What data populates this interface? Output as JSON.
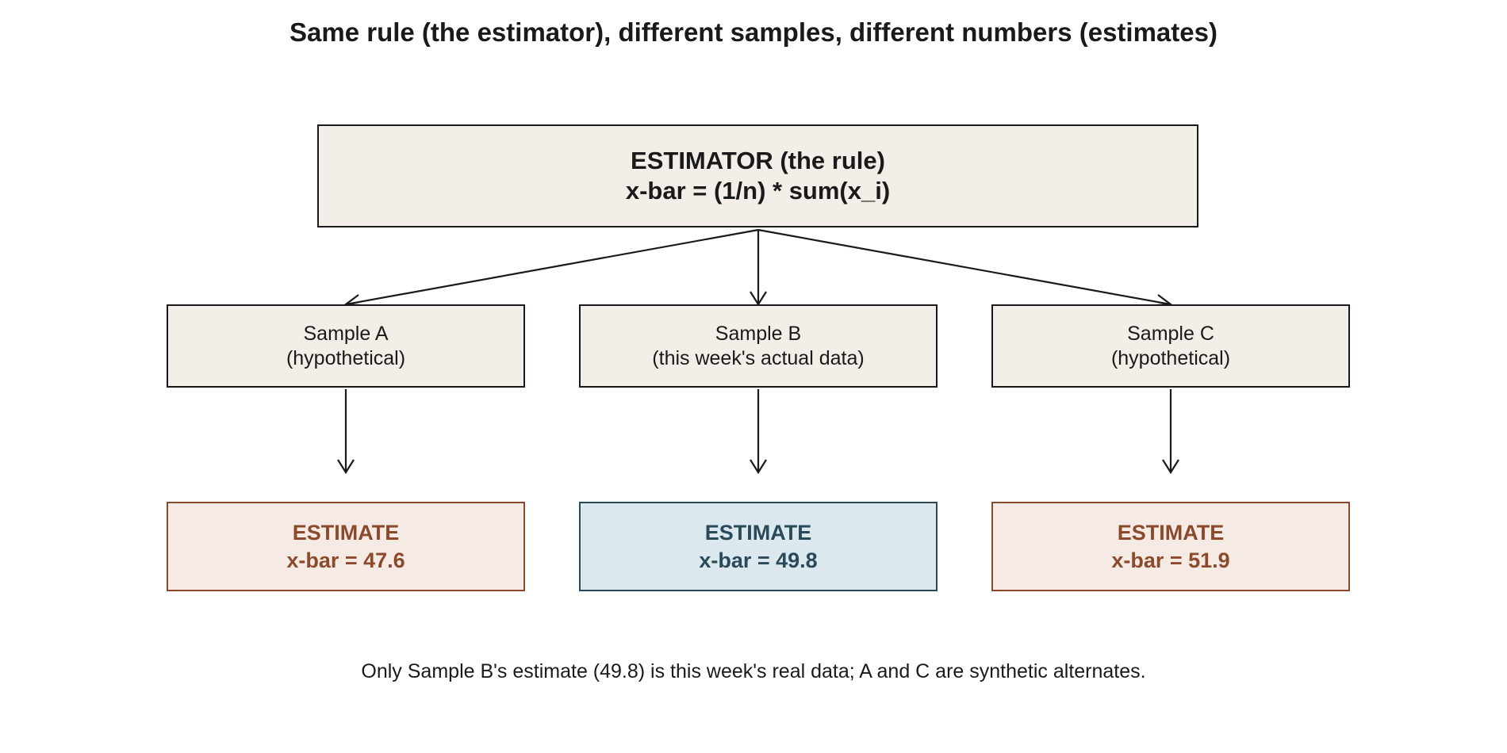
{
  "title": "Same rule (the estimator), different samples, different numbers (estimates)",
  "estimator": {
    "line1": "ESTIMATOR (the rule)",
    "line2": "x-bar = (1/n) * sum(x_i)"
  },
  "samples": [
    {
      "line1": "Sample A",
      "line2": "(hypothetical)"
    },
    {
      "line1": "Sample B",
      "line2": "(this week's actual data)"
    },
    {
      "line1": "Sample C",
      "line2": "(hypothetical)"
    }
  ],
  "estimates": [
    {
      "line1": "ESTIMATE",
      "line2": "x-bar = 47.6"
    },
    {
      "line1": "ESTIMATE",
      "line2": "x-bar = 49.8"
    },
    {
      "line1": "ESTIMATE",
      "line2": "x-bar = 51.9"
    }
  ],
  "footer": "Only Sample B's estimate (49.8) is this week's real data; A and C are synthetic alternates.",
  "colors": {
    "box_fill": "#f3eee8",
    "hypothetical_estimate_fill": "#f5ebe4",
    "hypothetical_estimate_accent": "#8b4a2b",
    "actual_estimate_fill": "#dbe9ee",
    "actual_estimate_accent": "#2a4a5a"
  }
}
